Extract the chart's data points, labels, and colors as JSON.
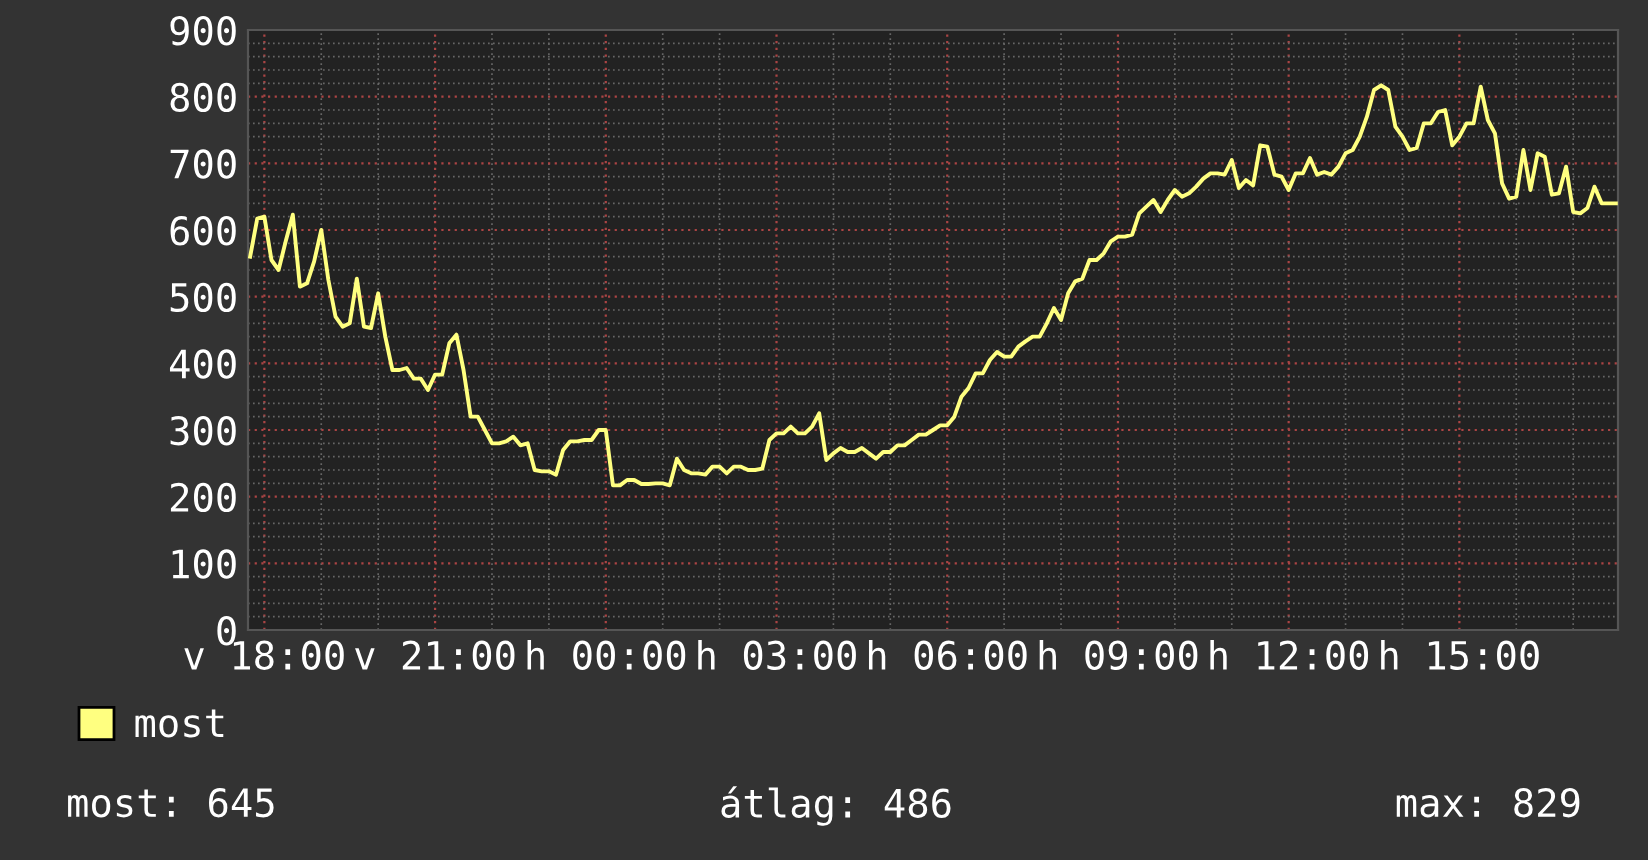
{
  "chart_data": {
    "type": "line",
    "legend": "bottom left",
    "grid": true,
    "line_style": "solid",
    "marker": "none",
    "ylim": [
      0,
      900
    ],
    "yticks": [
      0,
      100,
      200,
      300,
      400,
      500,
      600,
      700,
      800,
      900
    ],
    "categories": [
      null,
      null,
      "v 18:00",
      null,
      null,
      null,
      null,
      null,
      null,
      null,
      null,
      null,
      null,
      null,
      null,
      null,
      null,
      null,
      null,
      null,
      null,
      null,
      null,
      null,
      null,
      null,
      "v 21:00",
      null,
      null,
      null,
      null,
      null,
      null,
      null,
      null,
      null,
      null,
      null,
      null,
      null,
      null,
      null,
      null,
      null,
      null,
      null,
      null,
      null,
      null,
      null,
      "h 00:00",
      null,
      null,
      null,
      null,
      null,
      null,
      null,
      null,
      null,
      null,
      null,
      null,
      null,
      null,
      null,
      null,
      null,
      null,
      null,
      null,
      null,
      null,
      null,
      "h 03:00",
      null,
      null,
      null,
      null,
      null,
      null,
      null,
      null,
      null,
      null,
      null,
      null,
      null,
      null,
      null,
      null,
      null,
      null,
      null,
      null,
      null,
      null,
      null,
      "h 06:00",
      null,
      null,
      null,
      null,
      null,
      null,
      null,
      null,
      null,
      null,
      null,
      null,
      null,
      null,
      null,
      null,
      null,
      null,
      null,
      null,
      null,
      null,
      null,
      "h 09:00",
      null,
      null,
      null,
      null,
      null,
      null,
      null,
      null,
      null,
      null,
      null,
      null,
      null,
      null,
      null,
      null,
      null,
      null,
      null,
      null,
      null,
      null,
      null,
      "h 12:00",
      null,
      null,
      null,
      null,
      null,
      null,
      null,
      null,
      null,
      null,
      null,
      null,
      null,
      null,
      null,
      null,
      null,
      null,
      null,
      null,
      null,
      null,
      null,
      "h 15:00",
      null,
      null,
      null,
      null,
      null,
      null,
      null,
      null,
      null,
      null,
      null,
      null,
      null,
      null,
      null,
      null,
      null,
      null,
      null,
      null,
      null,
      null
    ],
    "annotations": [
      "most: 645",
      "átlag: 486",
      "max: 829"
    ],
    "series": [
      {
        "name": "most",
        "color": "#ffff80",
        "values": [
          560,
          617,
          620,
          555,
          540,
          583,
          623,
          515,
          520,
          553,
          600,
          525,
          470,
          455,
          460,
          527,
          455,
          453,
          505,
          440,
          390,
          390,
          393,
          377,
          377,
          360,
          383,
          383,
          430,
          443,
          390,
          320,
          320,
          300,
          280,
          280,
          283,
          290,
          277,
          280,
          240,
          238,
          238,
          233,
          270,
          283,
          283,
          285,
          285,
          300,
          300,
          217,
          217,
          225,
          225,
          219,
          219,
          220,
          220,
          217,
          257,
          240,
          235,
          235,
          233,
          245,
          245,
          235,
          245,
          245,
          240,
          240,
          242,
          285,
          295,
          295,
          305,
          295,
          295,
          305,
          325,
          255,
          265,
          273,
          267,
          267,
          273,
          265,
          257,
          267,
          267,
          277,
          277,
          285,
          293,
          293,
          300,
          307,
          307,
          320,
          350,
          363,
          385,
          385,
          405,
          417,
          410,
          410,
          425,
          433,
          440,
          440,
          460,
          483,
          465,
          505,
          523,
          527,
          555,
          555,
          565,
          583,
          590,
          590,
          593,
          625,
          635,
          645,
          627,
          645,
          660,
          650,
          655,
          665,
          677,
          685,
          685,
          683,
          705,
          663,
          675,
          667,
          727,
          725,
          683,
          680,
          660,
          685,
          685,
          708,
          683,
          687,
          683,
          695,
          715,
          720,
          740,
          770,
          810,
          817,
          810,
          755,
          740,
          720,
          723,
          760,
          760,
          777,
          780,
          727,
          740,
          760,
          760,
          815,
          765,
          745,
          670,
          647,
          650,
          720,
          660,
          715,
          710,
          653,
          655,
          695,
          627,
          625,
          633,
          665,
          640,
          640,
          640
        ]
      }
    ]
  }
}
